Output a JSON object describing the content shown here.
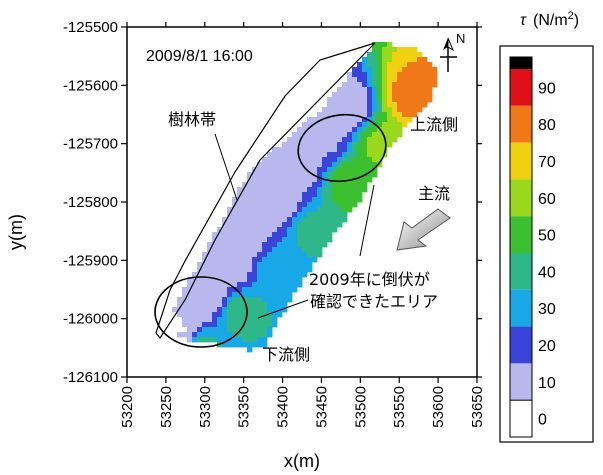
{
  "chart_data": {
    "type": "heatmap",
    "timestamp": "2009/8/1 16:00",
    "xlabel": "x(m)",
    "ylabel": "y(m)",
    "xlim": [
      53200,
      53650
    ],
    "ylim": [
      -126100,
      -125500
    ],
    "x_ticks": [
      "53200",
      "53250",
      "53300",
      "53350",
      "53400",
      "53450",
      "53500",
      "53550",
      "53600",
      "53650"
    ],
    "y_ticks": [
      "-125500",
      "-125600",
      "-125700",
      "-125800",
      "-125900",
      "-126000",
      "-126100"
    ],
    "colorbar": {
      "symbol": "τ",
      "unit": "(N/m",
      "unit_sup": "2",
      "unit_close": ")",
      "ticks": [
        "0",
        "10",
        "20",
        "30",
        "40",
        "50",
        "60",
        "70",
        "80",
        "90"
      ],
      "levels": [
        0,
        10,
        20,
        30,
        40,
        50,
        60,
        70,
        80,
        90,
        100
      ],
      "colors": [
        "#ffffff",
        "#b8b8ee",
        "#3a44d8",
        "#18a8e8",
        "#2eb88a",
        "#3cc030",
        "#9ad81e",
        "#f0d010",
        "#f07818",
        "#e01018",
        "#000000"
      ]
    },
    "annotations": {
      "forest_belt": "樹林帯",
      "upstream": "上流側",
      "downstream": "下流側",
      "main_flow": "主流",
      "fallen_area_line1": "2009年に倒伏が",
      "fallen_area_line2": "確認できたエリア",
      "north": "N"
    },
    "field_points": [
      {
        "x": 53262,
        "y": -126015,
        "v": 8
      },
      {
        "x": 53268,
        "y": -126040,
        "v": 12
      },
      {
        "x": 53285,
        "y": -125995,
        "v": 16
      },
      {
        "x": 53305,
        "y": -125960,
        "v": 14
      },
      {
        "x": 53330,
        "y": -125910,
        "v": 12
      },
      {
        "x": 53355,
        "y": -125860,
        "v": 18
      },
      {
        "x": 53390,
        "y": -125800,
        "v": 10
      },
      {
        "x": 53420,
        "y": -125740,
        "v": 16
      },
      {
        "x": 53450,
        "y": -125690,
        "v": 18
      },
      {
        "x": 53480,
        "y": -125640,
        "v": 12
      },
      {
        "x": 53300,
        "y": -126045,
        "v": 42
      },
      {
        "x": 53345,
        "y": -125990,
        "v": 45
      },
      {
        "x": 53395,
        "y": -125920,
        "v": 38
      },
      {
        "x": 53440,
        "y": -125850,
        "v": 42
      },
      {
        "x": 53490,
        "y": -125770,
        "v": 58
      },
      {
        "x": 53530,
        "y": -125700,
        "v": 62
      },
      {
        "x": 53570,
        "y": -125620,
        "v": 84
      }
    ]
  }
}
